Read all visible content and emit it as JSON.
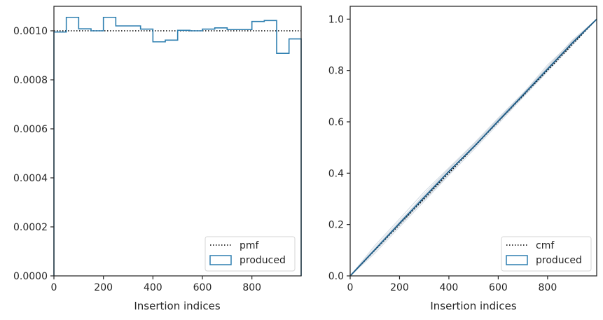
{
  "chart_data": [
    {
      "type": "line",
      "subtype": "step-histogram",
      "title": "",
      "xlabel": "Insertion indices",
      "ylabel": "",
      "xlim": [
        0,
        999
      ],
      "ylim": [
        0,
        0.0011
      ],
      "xticks": [
        "0",
        "200",
        "400",
        "600",
        "800"
      ],
      "xtick_values": [
        0,
        200,
        400,
        600,
        800
      ],
      "yticks": [
        "0.0000",
        "0.0002",
        "0.0004",
        "0.0006",
        "0.0008",
        "0.0010"
      ],
      "ytick_values": [
        0,
        0.0002,
        0.0004,
        0.0006,
        0.0008,
        0.001
      ],
      "grid": false,
      "legend_position": "bottom-right",
      "series": [
        {
          "name": "pmf",
          "style": "dotted",
          "color": "#000000",
          "x": [
            0,
            999
          ],
          "y": [
            0.001,
            0.001
          ]
        },
        {
          "name": "produced",
          "style": "step",
          "color": "#2e7fb0",
          "bin_edges": [
            0,
            50,
            100,
            150,
            200,
            250,
            300,
            350,
            400,
            450,
            500,
            550,
            600,
            650,
            700,
            750,
            800,
            850,
            900,
            950,
            999
          ],
          "values": [
            0.000995,
            0.001055,
            0.001008,
            0.001,
            0.001055,
            0.00102,
            0.00102,
            0.001007,
            0.000955,
            0.000962,
            0.001002,
            0.001,
            0.001007,
            0.001012,
            0.001005,
            0.001005,
            0.001038,
            0.001042,
            0.000908,
            0.000967
          ]
        }
      ]
    },
    {
      "type": "line",
      "title": "",
      "xlabel": "Insertion indices",
      "ylabel": "",
      "xlim": [
        0,
        999
      ],
      "ylim": [
        0,
        1.05
      ],
      "xticks": [
        "0",
        "200",
        "400",
        "600",
        "800"
      ],
      "xtick_values": [
        0,
        200,
        400,
        600,
        800
      ],
      "yticks": [
        "0.0",
        "0.2",
        "0.4",
        "0.6",
        "0.8",
        "1.0"
      ],
      "ytick_values": [
        0,
        0.2,
        0.4,
        0.6,
        0.8,
        1.0
      ],
      "grid": false,
      "legend_position": "bottom-right",
      "series": [
        {
          "name": "cmf",
          "style": "dotted",
          "color": "#000000",
          "x": [
            0,
            999
          ],
          "y": [
            0,
            1.0
          ]
        },
        {
          "name": "produced",
          "style": "line",
          "color": "#1f5f8b",
          "x": [
            0,
            100,
            200,
            300,
            400,
            500,
            600,
            700,
            800,
            900,
            999
          ],
          "y": [
            0,
            0.102,
            0.205,
            0.306,
            0.407,
            0.502,
            0.603,
            0.704,
            0.806,
            0.907,
            1.0
          ]
        }
      ],
      "background_lines_color": "#c8d2dc",
      "background_lines": [
        {
          "x": [
            0,
            100,
            200,
            300,
            400,
            500,
            600,
            700,
            800,
            900,
            999
          ],
          "y": [
            0,
            0.118,
            0.222,
            0.327,
            0.421,
            0.515,
            0.615,
            0.712,
            0.812,
            0.915,
            1.0
          ]
        },
        {
          "x": [
            0,
            100,
            200,
            300,
            400,
            500,
            600,
            700,
            800,
            900,
            999
          ],
          "y": [
            0,
            0.088,
            0.19,
            0.29,
            0.392,
            0.49,
            0.592,
            0.695,
            0.796,
            0.898,
            1.0
          ]
        },
        {
          "x": [
            0,
            100,
            200,
            300,
            400,
            500,
            600,
            700,
            800,
            900,
            999
          ],
          "y": [
            0,
            0.11,
            0.214,
            0.312,
            0.414,
            0.512,
            0.608,
            0.708,
            0.815,
            0.918,
            1.0
          ]
        },
        {
          "x": [
            0,
            100,
            200,
            300,
            400,
            500,
            600,
            700,
            800,
            900,
            999
          ],
          "y": [
            0,
            0.095,
            0.196,
            0.3,
            0.4,
            0.496,
            0.598,
            0.7,
            0.799,
            0.902,
            1.0
          ]
        },
        {
          "x": [
            0,
            100,
            200,
            300,
            400,
            500,
            600,
            700,
            800,
            900,
            999
          ],
          "y": [
            0,
            0.104,
            0.209,
            0.318,
            0.418,
            0.508,
            0.612,
            0.71,
            0.822,
            0.912,
            1.0
          ]
        },
        {
          "x": [
            0,
            100,
            200,
            300,
            400,
            500,
            600,
            700,
            800,
            900,
            999
          ],
          "y": [
            0,
            0.099,
            0.201,
            0.296,
            0.396,
            0.499,
            0.601,
            0.698,
            0.802,
            0.904,
            1.0
          ]
        }
      ]
    }
  ]
}
